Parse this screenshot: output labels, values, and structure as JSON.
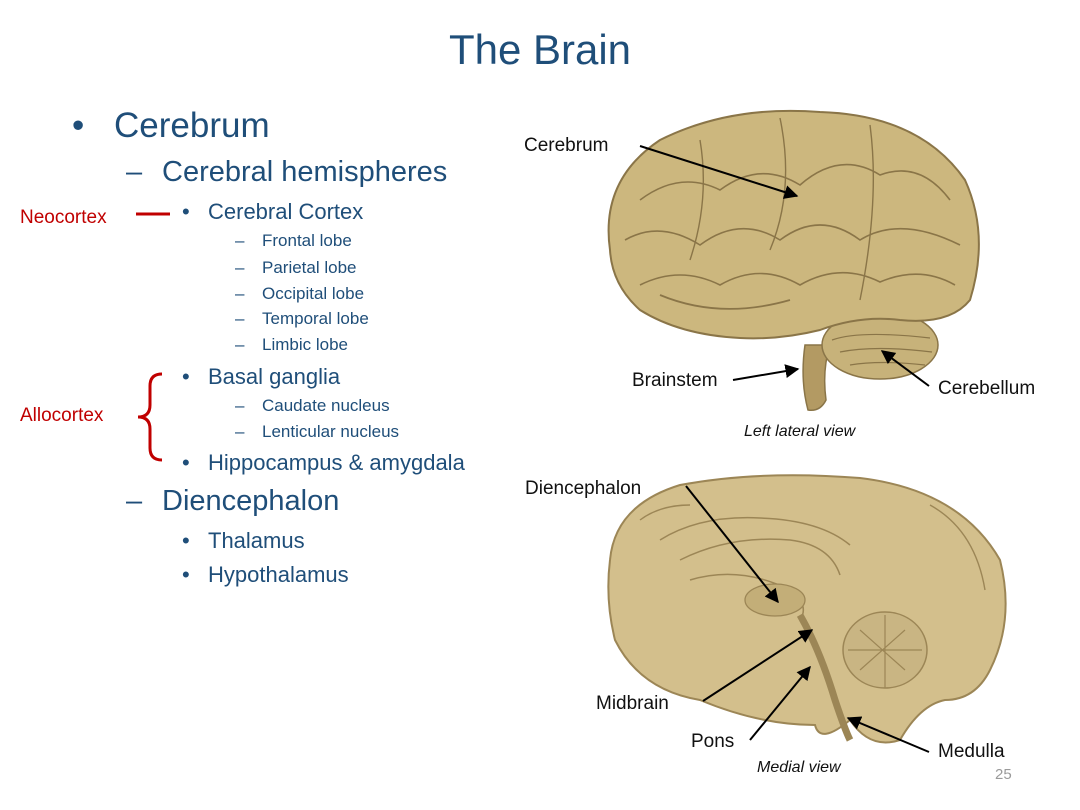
{
  "slide": {
    "title": "The Brain",
    "page_number": "25"
  },
  "outline": {
    "bullet": "•",
    "dash": "–",
    "cerebrum": "Cerebrum",
    "cerebral_hemispheres": "Cerebral hemispheres",
    "cerebral_cortex": "Cerebral Cortex",
    "lobes": [
      "Frontal lobe",
      "Parietal lobe",
      "Occipital lobe",
      "Temporal lobe",
      "Limbic lobe"
    ],
    "basal_ganglia": "Basal ganglia",
    "nuclei": [
      "Caudate nucleus",
      "Lenticular nucleus"
    ],
    "hippocampus": "Hippocampus & amygdala",
    "diencephalon": "Diencephalon",
    "dien_items": [
      "Thalamus",
      "Hypothalamus"
    ]
  },
  "annotations": {
    "neocortex": "Neocortex",
    "allocortex": "Allocortex"
  },
  "lateral_view": {
    "caption": "Left lateral view",
    "labels": {
      "cerebrum": "Cerebrum",
      "brainstem": "Brainstem",
      "cerebellum": "Cerebellum"
    }
  },
  "medial_view": {
    "caption": "Medial view",
    "labels": {
      "diencephalon": "Diencephalon",
      "midbrain": "Midbrain",
      "pons": "Pons",
      "medulla": "Medulla"
    }
  },
  "colors": {
    "title_text": "#1f4e79",
    "annotation_red": "#c00000",
    "brain_tissue": "#c9b47c"
  }
}
